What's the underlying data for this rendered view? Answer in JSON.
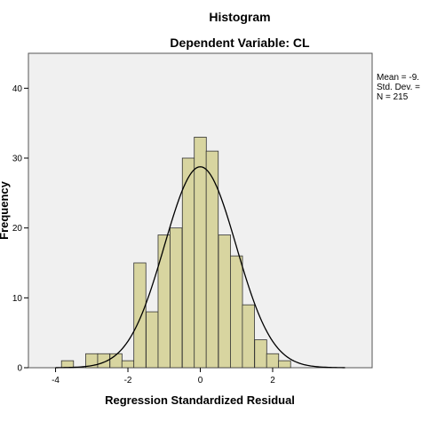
{
  "chart_data": {
    "type": "bar",
    "title": "Histogram",
    "subtitle": "Dependent Variable: CL",
    "xlabel": "Regression Standardized Residual",
    "ylabel": "Frequency",
    "xlim": [
      -4.75,
      4.75
    ],
    "ylim": [
      0,
      45
    ],
    "x_ticks": [
      -4,
      -2,
      0,
      2
    ],
    "y_ticks": [
      0,
      10,
      20,
      30,
      40
    ],
    "bin_width": 0.333,
    "bins": [
      {
        "x": -3.67,
        "count": 1
      },
      {
        "x": -3.33,
        "count": 0
      },
      {
        "x": -3.0,
        "count": 2
      },
      {
        "x": -2.67,
        "count": 2
      },
      {
        "x": -2.33,
        "count": 2
      },
      {
        "x": -2.0,
        "count": 1
      },
      {
        "x": -1.67,
        "count": 15
      },
      {
        "x": -1.33,
        "count": 8
      },
      {
        "x": -1.0,
        "count": 19
      },
      {
        "x": -0.67,
        "count": 20
      },
      {
        "x": -0.33,
        "count": 30
      },
      {
        "x": 0.0,
        "count": 33
      },
      {
        "x": 0.33,
        "count": 31
      },
      {
        "x": 0.67,
        "count": 19
      },
      {
        "x": 1.0,
        "count": 16
      },
      {
        "x": 1.33,
        "count": 9
      },
      {
        "x": 1.67,
        "count": 4
      },
      {
        "x": 2.0,
        "count": 2
      },
      {
        "x": 2.33,
        "count": 1
      }
    ],
    "normal_curve": {
      "mean": 0.0,
      "sd": 0.993,
      "n": 215
    },
    "stats_lines": [
      "Mean = -9.",
      "Std. Dev. =",
      "N = 215"
    ],
    "colors": {
      "bar_fill": "#d8d5a0",
      "bar_stroke": "#333333",
      "plot_bg": "#f0f0f0",
      "curve": "#000000"
    },
    "grid": false,
    "legend": "right"
  }
}
